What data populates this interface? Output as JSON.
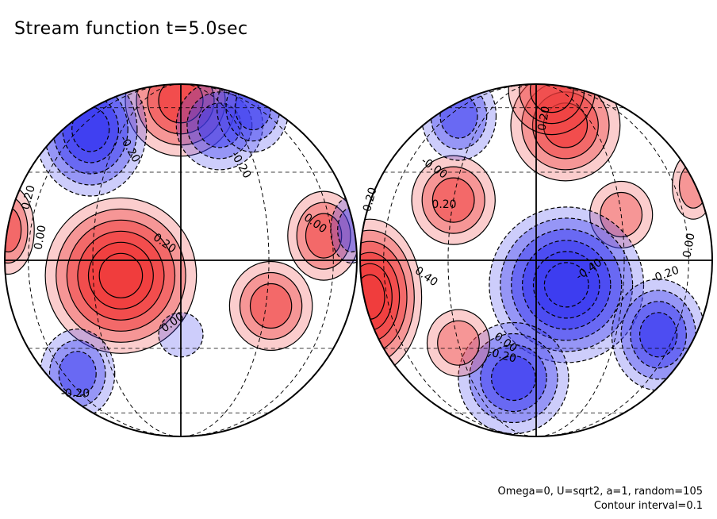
{
  "title": "Stream function t=5.0sec",
  "footer": {
    "params": "Omega=0, U=sqrt2, a=1, random=105",
    "contour_interval": "Contour interval=0.1"
  },
  "chart_data": {
    "type": "heatmap",
    "title": "Stream function t=5.0sec",
    "projection": "orthographic, two hemispheres",
    "contour_interval": 0.1,
    "colors": {
      "positive": "#f03c3c",
      "negative": "#3c3cf0",
      "zero": "#ffffff"
    },
    "hemispheres": [
      {
        "name": "left",
        "contour_labels": [
          "-0.20",
          "0.20",
          "-0.20",
          "0.00",
          "-0.20",
          "0.00",
          "0.20",
          "0.00"
        ],
        "features": [
          {
            "lon": -20,
            "lat": -5,
            "value": 0.6
          },
          {
            "lon": 0,
            "lat": 65,
            "value": 0.4
          },
          {
            "lon": -50,
            "lat": 48,
            "value": -0.5
          },
          {
            "lon": 20,
            "lat": 50,
            "value": -0.3
          },
          {
            "lon": 55,
            "lat": 60,
            "value": -0.25
          },
          {
            "lon": 32,
            "lat": -15,
            "value": 0.3
          },
          {
            "lon": 55,
            "lat": 8,
            "value": 0.3
          },
          {
            "lon": -85,
            "lat": 10,
            "value": 0.3
          },
          {
            "lon": -50,
            "lat": -40,
            "value": -0.25
          },
          {
            "lon": 0,
            "lat": -25,
            "value": -0.15
          },
          {
            "lon": 80,
            "lat": 10,
            "value": -0.2
          }
        ]
      },
      {
        "name": "right",
        "contour_labels": [
          "0.20",
          "-0.00",
          "0.20",
          "-0.20",
          "0.40",
          "-0.40",
          "-0.20",
          "0.00",
          "0.00",
          "-0.20"
        ],
        "features": [
          {
            "lon": -75,
            "lat": -12,
            "value": 0.55
          },
          {
            "lon": -30,
            "lat": 20,
            "value": 0.25
          },
          {
            "lon": 15,
            "lat": 50,
            "value": 0.4
          },
          {
            "lon": 20,
            "lat": 75,
            "value": 0.3
          },
          {
            "lon": 30,
            "lat": 15,
            "value": 0.2
          },
          {
            "lon": 80,
            "lat": 25,
            "value": 0.2
          },
          {
            "lon": 10,
            "lat": -8,
            "value": -0.55
          },
          {
            "lon": 50,
            "lat": -25,
            "value": -0.4
          },
          {
            "lon": -10,
            "lat": -42,
            "value": -0.4
          },
          {
            "lon": -50,
            "lat": 55,
            "value": -0.3
          },
          {
            "lon": -30,
            "lat": -28,
            "value": 0.2
          }
        ]
      }
    ]
  }
}
